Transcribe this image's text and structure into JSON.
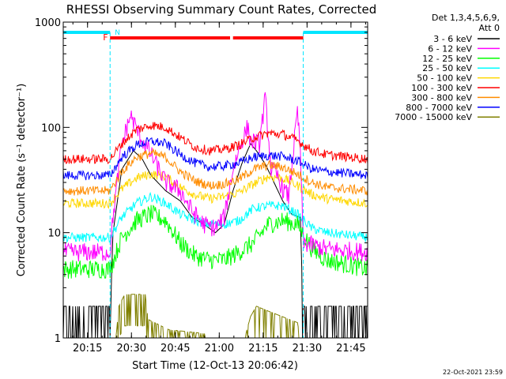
{
  "chart_data": {
    "type": "line",
    "title": "RHESSI Observing Summary Count Rates, Corrected",
    "ylabel": "Corrected Count Rate (s⁻¹ detector⁻¹)",
    "xlabel": "Start Time (12-Oct-13 20:06:42)",
    "x_start": "20:06:42",
    "xlim_minutes": [
      0,
      104
    ],
    "ylim": [
      1,
      1000
    ],
    "yscale": "log",
    "x_ticks": [
      {
        "label": "20:15",
        "t": 8.3
      },
      {
        "label": "20:30",
        "t": 23.3
      },
      {
        "label": "20:45",
        "t": 38.3
      },
      {
        "label": "21:00",
        "t": 53.3
      },
      {
        "label": "21:15",
        "t": 68.3
      },
      {
        "label": "21:30",
        "t": 83.3
      },
      {
        "label": "21:45",
        "t": 98.3
      }
    ],
    "y_ticks": [
      {
        "label": "1",
        "v": 1
      },
      {
        "label": "10",
        "v": 10
      },
      {
        "label": "100",
        "v": 100
      },
      {
        "label": "1000",
        "v": 1000
      }
    ],
    "legend_header": [
      "Det 1,3,4,5,6,9,",
      "Att 0"
    ],
    "legend_position": "right",
    "timestamp": "22-Oct-2021 23:59",
    "flags": {
      "night": [
        [
          0,
          16
        ],
        [
          82,
          104
        ]
      ],
      "flare": [
        [
          16,
          57
        ],
        [
          58,
          82
        ]
      ],
      "night_label": "N",
      "flare_label": "F"
    },
    "series": [
      {
        "name": "3 - 6 keV",
        "color": "#000000",
        "baseline": 2,
        "values": [
          [
            0,
            1.5
          ],
          [
            16,
            1.5
          ],
          [
            17,
            10
          ],
          [
            20,
            40
          ],
          [
            24,
            60
          ],
          [
            27,
            50
          ],
          [
            30,
            35
          ],
          [
            35,
            25
          ],
          [
            40,
            20
          ],
          [
            44,
            14
          ],
          [
            48,
            12
          ],
          [
            52,
            10
          ],
          [
            55,
            12
          ],
          [
            58,
            25
          ],
          [
            61,
            45
          ],
          [
            64,
            70
          ],
          [
            66,
            60
          ],
          [
            69,
            45
          ],
          [
            72,
            30
          ],
          [
            75,
            20
          ],
          [
            78,
            15
          ],
          [
            81,
            14
          ],
          [
            82,
            1.5
          ],
          [
            104,
            1.5
          ]
        ]
      },
      {
        "name": "6 - 12 keV",
        "color": "#ff00ff",
        "baseline": 6,
        "values": [
          [
            0,
            6.5
          ],
          [
            16,
            6.5
          ],
          [
            17,
            14
          ],
          [
            20,
            70
          ],
          [
            23,
            130
          ],
          [
            26,
            85
          ],
          [
            30,
            55
          ],
          [
            35,
            30
          ],
          [
            40,
            25
          ],
          [
            44,
            16
          ],
          [
            48,
            12
          ],
          [
            52,
            11
          ],
          [
            55,
            14
          ],
          [
            58,
            40
          ],
          [
            61,
            75
          ],
          [
            63,
            100
          ],
          [
            64,
            75
          ],
          [
            67,
            70
          ],
          [
            69,
            190
          ],
          [
            71,
            40
          ],
          [
            73,
            35
          ],
          [
            75,
            26
          ],
          [
            77,
            22
          ],
          [
            80,
            140
          ],
          [
            81,
            60
          ],
          [
            82,
            8
          ],
          [
            90,
            7
          ],
          [
            104,
            6.5
          ]
        ]
      },
      {
        "name": "12 - 25 keV",
        "color": "#00ff00",
        "baseline": 4.5,
        "values": [
          [
            0,
            4.5
          ],
          [
            16,
            4.5
          ],
          [
            20,
            9
          ],
          [
            25,
            13
          ],
          [
            30,
            15
          ],
          [
            35,
            13
          ],
          [
            40,
            8
          ],
          [
            45,
            6
          ],
          [
            50,
            5.5
          ],
          [
            55,
            5.5
          ],
          [
            60,
            6.5
          ],
          [
            65,
            8
          ],
          [
            70,
            12
          ],
          [
            75,
            13
          ],
          [
            80,
            12
          ],
          [
            85,
            7
          ],
          [
            90,
            5.5
          ],
          [
            104,
            4.5
          ]
        ]
      },
      {
        "name": "25 - 50 keV",
        "color": "#00ffff",
        "baseline": 9,
        "values": [
          [
            0,
            9
          ],
          [
            16,
            9
          ],
          [
            20,
            14
          ],
          [
            25,
            19
          ],
          [
            30,
            22
          ],
          [
            35,
            19
          ],
          [
            40,
            15
          ],
          [
            45,
            13
          ],
          [
            50,
            12
          ],
          [
            55,
            12
          ],
          [
            60,
            13
          ],
          [
            65,
            17
          ],
          [
            70,
            18
          ],
          [
            75,
            18
          ],
          [
            80,
            15
          ],
          [
            85,
            11
          ],
          [
            90,
            10
          ],
          [
            104,
            9
          ]
        ]
      },
      {
        "name": "50 - 100 keV",
        "color": "#ffd700",
        "baseline": 19,
        "values": [
          [
            0,
            19
          ],
          [
            16,
            19
          ],
          [
            20,
            26
          ],
          [
            25,
            33
          ],
          [
            30,
            36
          ],
          [
            35,
            34
          ],
          [
            40,
            27
          ],
          [
            45,
            23
          ],
          [
            50,
            21
          ],
          [
            55,
            22
          ],
          [
            60,
            24
          ],
          [
            65,
            29
          ],
          [
            70,
            34
          ],
          [
            75,
            33
          ],
          [
            80,
            28
          ],
          [
            85,
            23
          ],
          [
            90,
            21
          ],
          [
            104,
            19
          ]
        ]
      },
      {
        "name": "100 - 300 keV",
        "color": "#ff0000",
        "baseline": 50,
        "values": [
          [
            0,
            50
          ],
          [
            16,
            50
          ],
          [
            20,
            70
          ],
          [
            25,
            95
          ],
          [
            30,
            105
          ],
          [
            35,
            100
          ],
          [
            40,
            80
          ],
          [
            45,
            65
          ],
          [
            50,
            60
          ],
          [
            55,
            62
          ],
          [
            60,
            68
          ],
          [
            65,
            80
          ],
          [
            70,
            88
          ],
          [
            75,
            86
          ],
          [
            80,
            75
          ],
          [
            85,
            60
          ],
          [
            90,
            55
          ],
          [
            104,
            50
          ]
        ]
      },
      {
        "name": "300 - 800 keV",
        "color": "#ff8c00",
        "baseline": 25,
        "values": [
          [
            0,
            25
          ],
          [
            16,
            25
          ],
          [
            20,
            38
          ],
          [
            25,
            52
          ],
          [
            30,
            57
          ],
          [
            35,
            52
          ],
          [
            40,
            38
          ],
          [
            45,
            31
          ],
          [
            50,
            28
          ],
          [
            55,
            29
          ],
          [
            60,
            32
          ],
          [
            65,
            40
          ],
          [
            70,
            44
          ],
          [
            75,
            42
          ],
          [
            80,
            36
          ],
          [
            85,
            30
          ],
          [
            90,
            27
          ],
          [
            104,
            25
          ]
        ]
      },
      {
        "name": "800 - 7000 keV",
        "color": "#0000ff",
        "baseline": 35,
        "values": [
          [
            0,
            35
          ],
          [
            16,
            35
          ],
          [
            20,
            52
          ],
          [
            25,
            68
          ],
          [
            30,
            74
          ],
          [
            35,
            70
          ],
          [
            40,
            55
          ],
          [
            45,
            46
          ],
          [
            50,
            42
          ],
          [
            55,
            43
          ],
          [
            60,
            46
          ],
          [
            65,
            52
          ],
          [
            70,
            54
          ],
          [
            75,
            53
          ],
          [
            80,
            48
          ],
          [
            85,
            40
          ],
          [
            90,
            38
          ],
          [
            104,
            35
          ]
        ]
      },
      {
        "name": "7000 - 15000 keV",
        "color": "#808000",
        "baseline": 1,
        "values": [
          [
            0,
            1
          ],
          [
            18,
            1
          ],
          [
            19,
            2
          ],
          [
            21,
            2.6
          ],
          [
            28,
            2.6
          ],
          [
            29,
            1.5
          ],
          [
            36,
            1.2
          ],
          [
            62,
            1
          ],
          [
            64,
            1.6
          ],
          [
            66,
            2
          ],
          [
            70,
            1.8
          ],
          [
            80,
            1.4
          ],
          [
            81,
            1
          ],
          [
            104,
            1
          ]
        ]
      }
    ]
  }
}
